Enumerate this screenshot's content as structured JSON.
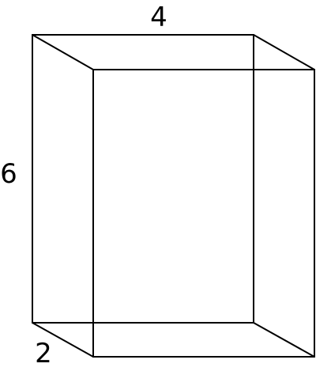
{
  "figure": {
    "type": "rectangular-prism-wireframe",
    "line_color": "#000000",
    "background_color": "#ffffff",
    "dimensions": {
      "width": "4",
      "height": "6",
      "depth": "2"
    }
  }
}
